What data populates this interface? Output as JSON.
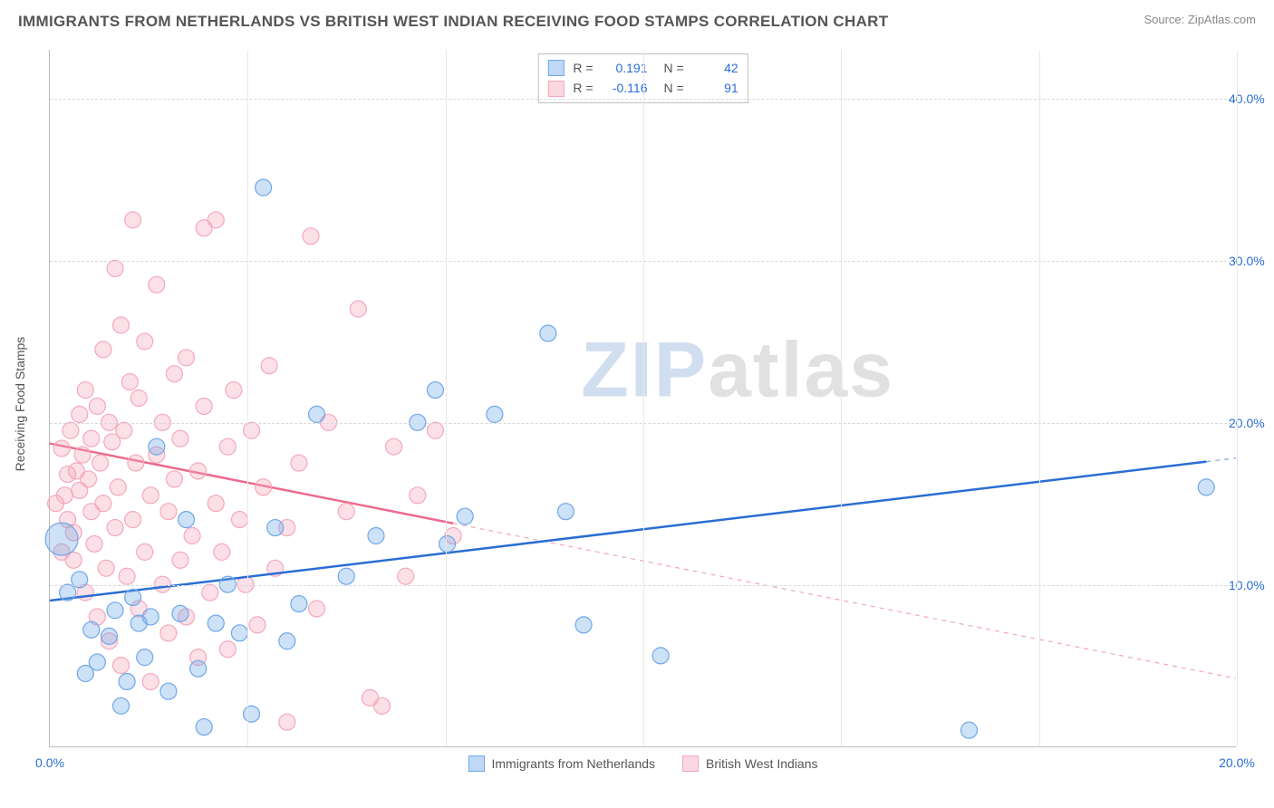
{
  "header": {
    "title": "IMMIGRANTS FROM NETHERLANDS VS BRITISH WEST INDIAN RECEIVING FOOD STAMPS CORRELATION CHART",
    "source_label": "Source: ",
    "source_value": "ZipAtlas.com"
  },
  "watermark": {
    "prefix": "ZIP",
    "suffix": "atlas"
  },
  "chart": {
    "type": "scatter",
    "ylabel": "Receiving Food Stamps",
    "xlim": [
      0,
      20
    ],
    "ylim": [
      0,
      43
    ],
    "xtick_labels": [
      "0.0%",
      "20.0%"
    ],
    "xtick_positions": [
      0,
      20
    ],
    "xgrid_positions": [
      3.33,
      6.67,
      10.0,
      13.33,
      16.67,
      20.0
    ],
    "ytick_labels": [
      "10.0%",
      "20.0%",
      "30.0%",
      "40.0%"
    ],
    "ytick_positions": [
      10,
      20,
      30,
      40
    ],
    "grid_color": "#d8d8d8",
    "axis_color": "#bbbbbb",
    "label_fontsize": 14,
    "tick_color": "#2a6dd4",
    "background_color": "#ffffff",
    "marker_radius": 9,
    "marker_opacity": 0.55,
    "line_width": 2.5,
    "series": {
      "netherlands": {
        "label": "Immigrants from Netherlands",
        "color": "#6fa8e8",
        "line_color": "#2a6dd4",
        "fill": "rgba(111,168,232,0.35)",
        "stroke": "#6fa8e8",
        "points": [
          [
            0.2,
            12.8,
            18
          ],
          [
            0.3,
            9.5,
            9
          ],
          [
            0.5,
            10.3,
            9
          ],
          [
            0.6,
            4.5,
            9
          ],
          [
            0.7,
            7.2,
            9
          ],
          [
            0.8,
            5.2,
            9
          ],
          [
            1.0,
            6.8,
            9
          ],
          [
            1.1,
            8.4,
            9
          ],
          [
            1.2,
            2.5,
            9
          ],
          [
            1.3,
            4.0,
            9
          ],
          [
            1.4,
            9.2,
            9
          ],
          [
            1.5,
            7.6,
            9
          ],
          [
            1.6,
            5.5,
            9
          ],
          [
            1.7,
            8.0,
            9
          ],
          [
            1.8,
            18.5,
            9
          ],
          [
            2.0,
            3.4,
            9
          ],
          [
            2.2,
            8.2,
            9
          ],
          [
            2.3,
            14.0,
            9
          ],
          [
            2.5,
            4.8,
            9
          ],
          [
            2.6,
            1.2,
            9
          ],
          [
            2.8,
            7.6,
            9
          ],
          [
            3.0,
            10.0,
            9
          ],
          [
            3.2,
            7.0,
            9
          ],
          [
            3.4,
            2.0,
            9
          ],
          [
            3.6,
            34.5,
            9
          ],
          [
            3.8,
            13.5,
            9
          ],
          [
            4.0,
            6.5,
            9
          ],
          [
            4.2,
            8.8,
            9
          ],
          [
            4.5,
            20.5,
            9
          ],
          [
            5.0,
            10.5,
            9
          ],
          [
            5.5,
            13.0,
            9
          ],
          [
            6.2,
            20.0,
            9
          ],
          [
            6.5,
            22.0,
            9
          ],
          [
            6.7,
            12.5,
            9
          ],
          [
            7.0,
            14.2,
            9
          ],
          [
            7.5,
            20.5,
            9
          ],
          [
            8.4,
            25.5,
            9
          ],
          [
            8.7,
            14.5,
            9
          ],
          [
            9.0,
            7.5,
            9
          ],
          [
            10.3,
            5.6,
            9
          ],
          [
            15.5,
            1.0,
            9
          ],
          [
            19.5,
            16.0,
            9
          ]
        ],
        "regression": {
          "x1": 0,
          "y1": 9.0,
          "x2": 20,
          "y2": 17.8,
          "extrapolate_from_x": 0
        }
      },
      "bwi": {
        "label": "British West Indians",
        "color": "#f5a7bd",
        "line_color": "#ec6a8e",
        "fill": "rgba(245,167,189,0.35)",
        "stroke": "#f5a7bd",
        "points": [
          [
            0.1,
            15.0,
            9
          ],
          [
            0.2,
            18.4,
            9
          ],
          [
            0.2,
            12.0,
            9
          ],
          [
            0.25,
            15.5,
            9
          ],
          [
            0.3,
            16.8,
            9
          ],
          [
            0.3,
            14.0,
            9
          ],
          [
            0.35,
            19.5,
            9
          ],
          [
            0.4,
            11.5,
            9
          ],
          [
            0.4,
            13.2,
            9
          ],
          [
            0.45,
            17.0,
            9
          ],
          [
            0.5,
            15.8,
            9
          ],
          [
            0.5,
            20.5,
            9
          ],
          [
            0.55,
            18.0,
            9
          ],
          [
            0.6,
            22.0,
            9
          ],
          [
            0.6,
            9.5,
            9
          ],
          [
            0.65,
            16.5,
            9
          ],
          [
            0.7,
            14.5,
            9
          ],
          [
            0.7,
            19.0,
            9
          ],
          [
            0.75,
            12.5,
            9
          ],
          [
            0.8,
            21.0,
            9
          ],
          [
            0.8,
            8.0,
            9
          ],
          [
            0.85,
            17.5,
            9
          ],
          [
            0.9,
            15.0,
            9
          ],
          [
            0.9,
            24.5,
            9
          ],
          [
            0.95,
            11.0,
            9
          ],
          [
            1.0,
            20.0,
            9
          ],
          [
            1.0,
            6.5,
            9
          ],
          [
            1.05,
            18.8,
            9
          ],
          [
            1.1,
            29.5,
            9
          ],
          [
            1.1,
            13.5,
            9
          ],
          [
            1.15,
            16.0,
            9
          ],
          [
            1.2,
            26.0,
            9
          ],
          [
            1.2,
            5.0,
            9
          ],
          [
            1.25,
            19.5,
            9
          ],
          [
            1.3,
            10.5,
            9
          ],
          [
            1.35,
            22.5,
            9
          ],
          [
            1.4,
            32.5,
            9
          ],
          [
            1.4,
            14.0,
            9
          ],
          [
            1.45,
            17.5,
            9
          ],
          [
            1.5,
            8.5,
            9
          ],
          [
            1.5,
            21.5,
            9
          ],
          [
            1.6,
            12.0,
            9
          ],
          [
            1.6,
            25.0,
            9
          ],
          [
            1.7,
            15.5,
            9
          ],
          [
            1.7,
            4.0,
            9
          ],
          [
            1.8,
            18.0,
            9
          ],
          [
            1.8,
            28.5,
            9
          ],
          [
            1.9,
            10.0,
            9
          ],
          [
            1.9,
            20.0,
            9
          ],
          [
            2.0,
            7.0,
            9
          ],
          [
            2.0,
            14.5,
            9
          ],
          [
            2.1,
            23.0,
            9
          ],
          [
            2.1,
            16.5,
            9
          ],
          [
            2.2,
            11.5,
            9
          ],
          [
            2.2,
            19.0,
            9
          ],
          [
            2.3,
            8.0,
            9
          ],
          [
            2.3,
            24.0,
            9
          ],
          [
            2.4,
            13.0,
            9
          ],
          [
            2.5,
            17.0,
            9
          ],
          [
            2.5,
            5.5,
            9
          ],
          [
            2.6,
            21.0,
            9
          ],
          [
            2.6,
            32.0,
            9
          ],
          [
            2.7,
            9.5,
            9
          ],
          [
            2.8,
            15.0,
            9
          ],
          [
            2.8,
            32.5,
            9
          ],
          [
            2.9,
            12.0,
            9
          ],
          [
            3.0,
            18.5,
            9
          ],
          [
            3.0,
            6.0,
            9
          ],
          [
            3.1,
            22.0,
            9
          ],
          [
            3.2,
            14.0,
            9
          ],
          [
            3.3,
            10.0,
            9
          ],
          [
            3.4,
            19.5,
            9
          ],
          [
            3.5,
            7.5,
            9
          ],
          [
            3.6,
            16.0,
            9
          ],
          [
            3.7,
            23.5,
            9
          ],
          [
            3.8,
            11.0,
            9
          ],
          [
            4.0,
            13.5,
            9
          ],
          [
            4.0,
            1.5,
            9
          ],
          [
            4.2,
            17.5,
            9
          ],
          [
            4.4,
            31.5,
            9
          ],
          [
            4.5,
            8.5,
            9
          ],
          [
            4.7,
            20.0,
            9
          ],
          [
            5.0,
            14.5,
            9
          ],
          [
            5.2,
            27.0,
            9
          ],
          [
            5.4,
            3.0,
            9
          ],
          [
            5.6,
            2.5,
            9
          ],
          [
            5.8,
            18.5,
            9
          ],
          [
            6.0,
            10.5,
            9
          ],
          [
            6.2,
            15.5,
            9
          ],
          [
            6.5,
            19.5,
            9
          ],
          [
            6.8,
            13.0,
            9
          ]
        ],
        "regression": {
          "x1": 0,
          "y1": 18.7,
          "x2": 20,
          "y2": 4.2,
          "extrapolate_from_x": 6.0
        }
      }
    },
    "stats_box": {
      "rows": [
        {
          "swatch_fill": "rgba(111,168,232,0.45)",
          "swatch_stroke": "#6fa8e8",
          "r": "0.191",
          "n": "42"
        },
        {
          "swatch_fill": "rgba(245,167,189,0.45)",
          "swatch_stroke": "#f5a7bd",
          "r": "-0.116",
          "n": "91"
        }
      ],
      "r_label": "R =",
      "n_label": "N ="
    },
    "bottom_legend": [
      {
        "swatch_fill": "rgba(111,168,232,0.45)",
        "swatch_stroke": "#6fa8e8",
        "label": "Immigrants from Netherlands"
      },
      {
        "swatch_fill": "rgba(245,167,189,0.45)",
        "swatch_stroke": "#f5a7bd",
        "label": "British West Indians"
      }
    ]
  }
}
